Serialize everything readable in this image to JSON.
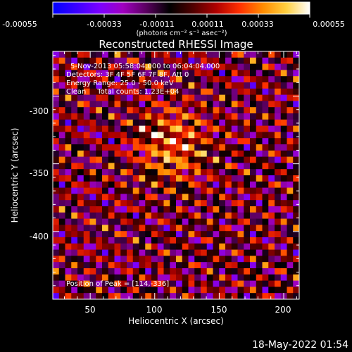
{
  "colorbar": {
    "tick_labels": [
      "-0.00055",
      "-0.00033",
      "-0.00011",
      "0.00011",
      "0.00033",
      "0.00055"
    ],
    "range": [
      -0.00055,
      0.00055
    ],
    "units": "(photons cm⁻² s⁻¹ asec⁻²)",
    "palette": [
      "#0000ff",
      "#3a00ff",
      "#7b00ff",
      "#a000c0",
      "#5a0060",
      "#000000",
      "#500000",
      "#b00000",
      "#ff3000",
      "#ff8c00",
      "#ffd040",
      "#ffffff"
    ]
  },
  "chart_data": {
    "type": "heatmap",
    "title": "Reconstructed RHESSI Image",
    "xlabel": "Heliocentric X (arcsec)",
    "ylabel": "Heliocentric Y (arcsec)",
    "xlim": [
      21,
      212
    ],
    "ylim": [
      -450,
      -267
    ],
    "x_ticks": [
      50,
      100,
      150,
      200
    ],
    "y_ticks": [
      -300,
      -350,
      -400
    ],
    "peak": [
      114,
      -336
    ]
  },
  "annotations": {
    "time_range": "5-Nov-2013 05:58:04.000 to 06:04:04.000",
    "detectors": "Detectors: 3F 4F 5F 6F 7F 8F, Att 0",
    "energy": "Energy Range: 25.0 - 50.0 keV",
    "clean": "Clean     Total counts: 1.23E+04",
    "peak_label": "Position of Peak = [114,-336]"
  },
  "timestamp": "18-May-2022 01:54"
}
